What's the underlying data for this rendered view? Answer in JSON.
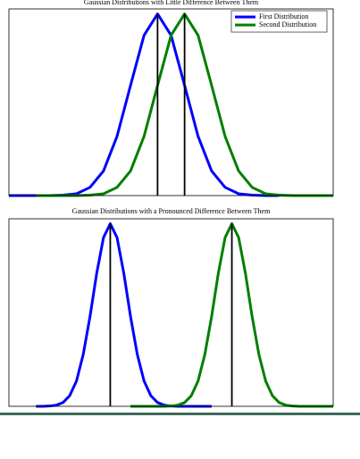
{
  "chart_data": [
    {
      "type": "line",
      "title": "Gaussian Distributions with Little Difference Between Them",
      "x": [
        0,
        0.5,
        1,
        1.5,
        2,
        2.5,
        3,
        3.5,
        4,
        4.5,
        5,
        5.5,
        6,
        6.5,
        7,
        7.5,
        8,
        8.5,
        9,
        9.5,
        10,
        10.5,
        11,
        11.5,
        12
      ],
      "series": [
        {
          "name": "First Distribution",
          "color": "#0000ff",
          "values": [
            0,
            0,
            0,
            0,
            0.001,
            0.004,
            0.018,
            0.054,
            0.13,
            0.242,
            0.352,
            0.399,
            0.352,
            0.242,
            0.13,
            0.054,
            0.018,
            0.004,
            0.001,
            0,
            0,
            null,
            null,
            null,
            null
          ]
        },
        {
          "name": "Second Distribution",
          "color": "#007f00",
          "values": [
            null,
            null,
            0,
            0,
            0,
            0,
            0.001,
            0.004,
            0.018,
            0.054,
            0.13,
            0.242,
            0.352,
            0.399,
            0.352,
            0.242,
            0.13,
            0.054,
            0.018,
            0.004,
            0.001,
            0,
            0,
            0,
            0
          ]
        }
      ],
      "vlines": [
        5.5,
        6.5
      ],
      "xlim": [
        0,
        12
      ],
      "ylim": [
        0,
        0.41
      ],
      "legend": "upper right"
    },
    {
      "type": "line",
      "title": "Gaussian Distributions with a Pronounced Difference Between Them",
      "x": [
        1,
        1.25,
        1.5,
        1.75,
        2,
        2.25,
        2.5,
        2.75,
        3,
        3.25,
        3.5,
        3.75,
        4,
        4.25,
        4.5,
        4.75,
        5,
        5.25,
        5.5,
        5.75,
        6,
        6.25,
        6.5,
        6.75,
        7,
        7.25,
        7.5,
        7.75,
        8,
        8.25,
        8.5,
        8.75,
        9,
        9.25,
        9.5,
        9.75,
        10,
        10.25,
        10.5,
        10.75,
        11,
        11.25,
        11.5,
        11.75,
        12
      ],
      "series": [
        {
          "color": "#0000ff",
          "values": [
            0,
            0,
            0.001,
            0.004,
            0.013,
            0.037,
            0.088,
            0.18,
            0.311,
            0.462,
            0.585,
            0.633,
            0.585,
            0.462,
            0.311,
            0.18,
            0.088,
            0.037,
            0.013,
            0.004,
            0.001,
            0,
            0,
            0,
            0,
            0,
            0,
            null,
            null,
            null,
            null,
            null,
            null,
            null,
            null,
            null,
            null,
            null,
            null,
            null,
            null,
            null,
            null,
            null,
            null
          ]
        },
        {
          "color": "#007f00",
          "values": [
            null,
            null,
            null,
            null,
            null,
            null,
            null,
            null,
            null,
            null,
            null,
            null,
            null,
            null,
            0,
            0,
            0,
            0,
            0,
            0,
            0.001,
            0.004,
            0.013,
            0.037,
            0.088,
            0.18,
            0.311,
            0.462,
            0.585,
            0.633,
            0.585,
            0.462,
            0.311,
            0.18,
            0.088,
            0.037,
            0.013,
            0.004,
            0.001,
            0,
            0,
            0,
            0,
            0,
            0
          ]
        }
      ],
      "vlines": [
        3.75,
        8.25
      ],
      "xlim": [
        0,
        12
      ],
      "ylim": [
        0,
        0.65
      ]
    }
  ]
}
